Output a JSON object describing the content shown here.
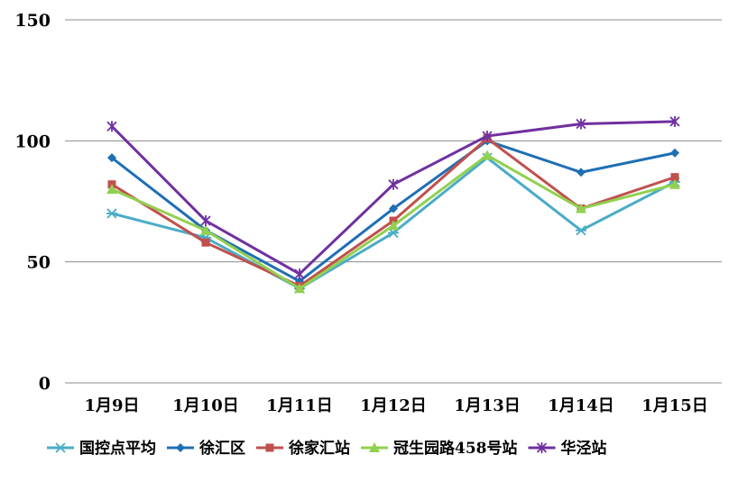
{
  "chart_data": {
    "type": "line",
    "categories": [
      "1月9日",
      "1月10日",
      "1月11日",
      "1月12日",
      "1月13日",
      "1月14日",
      "1月15日"
    ],
    "ylim": [
      0,
      150
    ],
    "yticks": [
      "0",
      "50",
      "100",
      "150"
    ],
    "grid": true,
    "legend_position": "bottom",
    "series": [
      {
        "name": "国控点平均",
        "color": "#4BACC6",
        "marker": "asterisk",
        "values": [
          70,
          60,
          39,
          62,
          93,
          63,
          83
        ]
      },
      {
        "name": "徐汇区",
        "color": "#1F6FB4",
        "marker": "diamond",
        "values": [
          93,
          63,
          42,
          72,
          100,
          87,
          95
        ]
      },
      {
        "name": "徐家汇站",
        "color": "#C0504D",
        "marker": "square",
        "values": [
          82,
          58,
          40,
          67,
          101,
          72,
          85
        ]
      },
      {
        "name": "冠生园路458号站",
        "color": "#92D050",
        "marker": "triangle",
        "values": [
          80,
          63,
          39,
          65,
          94,
          72,
          82
        ]
      },
      {
        "name": "华泾站",
        "color": "#7030A0",
        "marker": "star",
        "values": [
          106,
          67,
          45,
          82,
          102,
          107,
          108
        ]
      }
    ]
  }
}
